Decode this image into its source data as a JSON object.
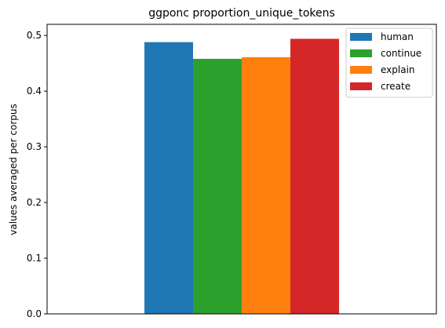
{
  "chart_data": {
    "type": "bar",
    "title": "ggponc proportion_unique_tokens",
    "xlabel": "",
    "ylabel": "values averaged per corpus",
    "ylim": [
      0,
      0.52
    ],
    "yticks": [
      "0.0",
      "0.1",
      "0.2",
      "0.3",
      "0.4",
      "0.5"
    ],
    "grid": false,
    "legend_position": "top-right",
    "categories": [
      ""
    ],
    "series": [
      {
        "name": "human",
        "values": [
          0.488
        ],
        "color": "#1f77b4"
      },
      {
        "name": "continue",
        "values": [
          0.458
        ],
        "color": "#2ca02c"
      },
      {
        "name": "explain",
        "values": [
          0.461
        ],
        "color": "#ff7f0e"
      },
      {
        "name": "create",
        "values": [
          0.494
        ],
        "color": "#d62728"
      }
    ]
  }
}
